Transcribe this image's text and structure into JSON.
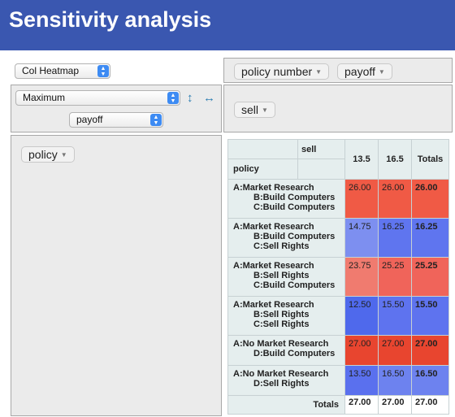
{
  "header": {
    "title": "Sensitivity analysis"
  },
  "controls": {
    "renderer": "Col Heatmap",
    "aggregator": "Maximum",
    "value_field": "payoff"
  },
  "col_pills": [
    {
      "label": "policy number"
    },
    {
      "label": "payoff"
    }
  ],
  "col_axis_pills": [
    {
      "label": "sell"
    }
  ],
  "row_axis_pills": [
    {
      "label": "policy"
    }
  ],
  "table": {
    "col_attr": "sell",
    "row_attr": "policy",
    "col_headers": [
      "13.5",
      "16.5",
      "Totals"
    ],
    "rows": [
      {
        "labels": [
          "A:Market Research",
          "B:Build Computers",
          "C:Build Computers"
        ],
        "cells": [
          {
            "value": "26.00",
            "color": "#f05a45"
          },
          {
            "value": "26.00",
            "color": "#f05a45"
          },
          {
            "value": "26.00",
            "color": "#f05a45"
          }
        ]
      },
      {
        "labels": [
          "A:Market Research",
          "B:Build Computers",
          "C:Sell Rights"
        ],
        "cells": [
          {
            "value": "14.75",
            "color": "#7d8ff0"
          },
          {
            "value": "16.25",
            "color": "#5f75ef"
          },
          {
            "value": "16.25",
            "color": "#5f75ef"
          }
        ]
      },
      {
        "labels": [
          "A:Market Research",
          "B:Sell Rights",
          "C:Build Computers"
        ],
        "cells": [
          {
            "value": "23.75",
            "color": "#f07b6f"
          },
          {
            "value": "25.25",
            "color": "#f0645a"
          },
          {
            "value": "25.25",
            "color": "#f0645a"
          }
        ]
      },
      {
        "labels": [
          "A:Market Research",
          "B:Sell Rights",
          "C:Sell Rights"
        ],
        "cells": [
          {
            "value": "12.50",
            "color": "#4f69ec"
          },
          {
            "value": "15.50",
            "color": "#5e73ef"
          },
          {
            "value": "15.50",
            "color": "#5e73ef"
          }
        ]
      },
      {
        "labels": [
          "A:No Market Research",
          "D:Build Computers"
        ],
        "cells": [
          {
            "value": "27.00",
            "color": "#e8452f"
          },
          {
            "value": "27.00",
            "color": "#e8452f"
          },
          {
            "value": "27.00",
            "color": "#e8452f"
          }
        ]
      },
      {
        "labels": [
          "A:No Market Research",
          "D:Sell Rights"
        ],
        "cells": [
          {
            "value": "13.50",
            "color": "#5a70ee"
          },
          {
            "value": "16.50",
            "color": "#6d82ef"
          },
          {
            "value": "16.50",
            "color": "#6d82ef"
          }
        ]
      }
    ],
    "totals_label": "Totals",
    "totals": [
      "27.00",
      "27.00",
      "27.00"
    ]
  }
}
